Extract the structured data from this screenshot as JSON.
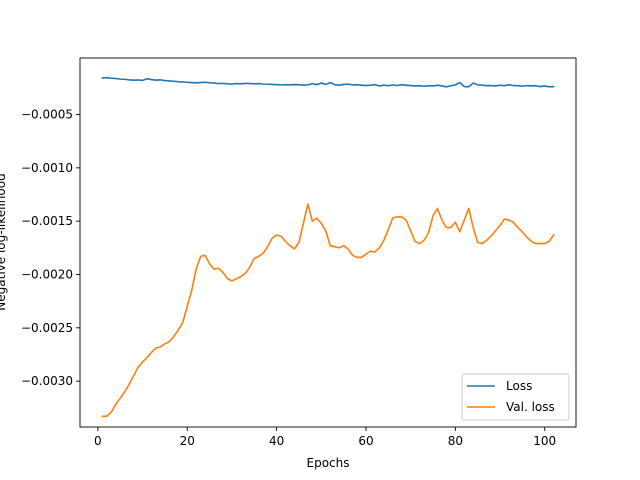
{
  "chart_data": {
    "type": "line",
    "title": "",
    "xlabel": "Epochs",
    "ylabel": "Negative log-likelihood",
    "xlim": [
      -4,
      107
    ],
    "ylim": [
      -0.00343,
      3e-05
    ],
    "xticks": [
      0,
      20,
      40,
      60,
      80,
      100
    ],
    "xtick_labels": [
      "0",
      "20",
      "40",
      "60",
      "80",
      "100"
    ],
    "yticks": [
      -0.0005,
      -0.001,
      -0.0015,
      -0.002,
      -0.0025,
      -0.003
    ],
    "ytick_labels": [
      "−0.0005",
      "−0.0010",
      "−0.0015",
      "−0.0020",
      "−0.0025",
      "−0.0030"
    ],
    "grid": false,
    "legend_position": "lower-right",
    "x": [
      1,
      2,
      3,
      4,
      5,
      6,
      7,
      8,
      9,
      10,
      11,
      12,
      13,
      14,
      15,
      16,
      17,
      18,
      19,
      20,
      21,
      22,
      23,
      24,
      25,
      26,
      27,
      28,
      29,
      30,
      31,
      32,
      33,
      34,
      35,
      36,
      37,
      38,
      39,
      40,
      41,
      42,
      43,
      44,
      45,
      46,
      47,
      48,
      49,
      50,
      51,
      52,
      53,
      54,
      55,
      56,
      57,
      58,
      59,
      60,
      61,
      62,
      63,
      64,
      65,
      66,
      67,
      68,
      69,
      70,
      71,
      72,
      73,
      74,
      75,
      76,
      77,
      78,
      79,
      80,
      81,
      82,
      83,
      84,
      85,
      86,
      87,
      88,
      89,
      90,
      91,
      92,
      93,
      94,
      95,
      96,
      97,
      98,
      99,
      100,
      101,
      102
    ],
    "series": [
      {
        "name": "Loss",
        "color": "#1f77b4",
        "values": [
          -0.000158,
          -0.000155,
          -0.00016,
          -0.000162,
          -0.000168,
          -0.00017,
          -0.000175,
          -0.000178,
          -0.000176,
          -0.00018,
          -0.000165,
          -0.000172,
          -0.000178,
          -0.000175,
          -0.000182,
          -0.000185,
          -0.000188,
          -0.000192,
          -0.000195,
          -0.000198,
          -0.0002,
          -0.000203,
          -0.0002,
          -0.000198,
          -0.000202,
          -0.000205,
          -0.00021,
          -0.000208,
          -0.000212,
          -0.000215,
          -0.00021,
          -0.000212,
          -0.000208,
          -0.00021,
          -0.000212,
          -0.00021,
          -0.000215,
          -0.000216,
          -0.000218,
          -0.00022,
          -0.000222,
          -0.00022,
          -0.000221,
          -0.000219,
          -0.00022,
          -0.000225,
          -0.000222,
          -0.00021,
          -0.00022,
          -0.000205,
          -0.000218,
          -0.0002,
          -0.00022,
          -0.000225,
          -0.000218,
          -0.000215,
          -0.000222,
          -0.00022,
          -0.000225,
          -0.000228,
          -0.000225,
          -0.00022,
          -0.000232,
          -0.000225,
          -0.00023,
          -0.000222,
          -0.000228,
          -0.00022,
          -0.000225,
          -0.000228,
          -0.000232,
          -0.00023,
          -0.000235,
          -0.00023,
          -0.000232,
          -0.000225,
          -0.000232,
          -0.00024,
          -0.00023,
          -0.000222,
          -0.0002,
          -0.000238,
          -0.00024,
          -0.000205,
          -0.000222,
          -0.000225,
          -0.00023,
          -0.000228,
          -0.000232,
          -0.000225,
          -0.00023,
          -0.00022,
          -0.000228,
          -0.00023,
          -0.000235,
          -0.000228,
          -0.000232,
          -0.00023,
          -0.000238,
          -0.000232,
          -0.00024,
          -0.000238
        ]
      },
      {
        "name": "Val. loss",
        "color": "#ff7f0e",
        "values": [
          -0.00333,
          -0.00333,
          -0.00329,
          -0.00322,
          -0.00316,
          -0.0031,
          -0.00303,
          -0.00295,
          -0.00287,
          -0.00282,
          -0.00278,
          -0.00273,
          -0.00269,
          -0.00268,
          -0.00265,
          -0.00263,
          -0.00258,
          -0.00252,
          -0.00245,
          -0.0023,
          -0.00215,
          -0.00195,
          -0.00183,
          -0.00182,
          -0.0019,
          -0.00195,
          -0.00194,
          -0.00198,
          -0.00204,
          -0.00206,
          -0.00204,
          -0.00202,
          -0.00199,
          -0.00193,
          -0.00185,
          -0.00183,
          -0.0018,
          -0.00174,
          -0.00166,
          -0.00163,
          -0.00164,
          -0.00169,
          -0.00173,
          -0.00176,
          -0.0017,
          -0.00152,
          -0.00134,
          -0.0015,
          -0.00147,
          -0.00152,
          -0.00159,
          -0.00173,
          -0.00174,
          -0.00175,
          -0.00173,
          -0.00176,
          -0.00182,
          -0.00184,
          -0.00184,
          -0.00181,
          -0.00178,
          -0.00179,
          -0.00175,
          -0.00168,
          -0.00158,
          -0.00147,
          -0.00146,
          -0.00146,
          -0.00149,
          -0.00159,
          -0.00169,
          -0.00171,
          -0.00168,
          -0.00161,
          -0.00145,
          -0.00138,
          -0.00149,
          -0.00156,
          -0.00156,
          -0.00151,
          -0.0016,
          -0.00149,
          -0.00138,
          -0.00156,
          -0.0017,
          -0.00171,
          -0.00168,
          -0.00164,
          -0.00159,
          -0.00154,
          -0.00148,
          -0.00149,
          -0.00151,
          -0.00156,
          -0.0016,
          -0.00165,
          -0.00169,
          -0.00171,
          -0.00171,
          -0.00171,
          -0.00169,
          -0.00163
        ]
      }
    ]
  }
}
